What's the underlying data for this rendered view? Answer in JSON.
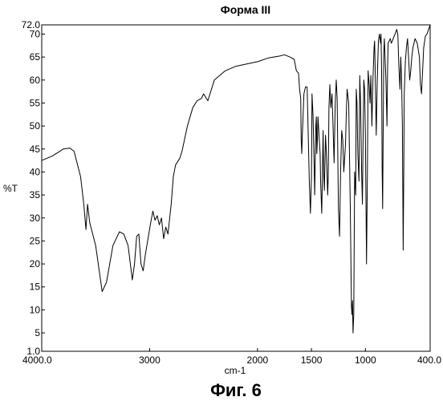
{
  "chart_data": {
    "type": "line",
    "title": "Форма III",
    "xlabel": "cm-1",
    "ylabel": "%T",
    "caption": "Фиг. 6",
    "xlim": [
      4000.0,
      400.0
    ],
    "ylim": [
      1.0,
      72.0
    ],
    "x_reversed": true,
    "x_ticks": [
      {
        "value": 4000,
        "label": "4000.0"
      },
      {
        "value": 3000,
        "label": "3000"
      },
      {
        "value": 2000,
        "label": "2000"
      },
      {
        "value": 1500,
        "label": "1500"
      },
      {
        "value": 1000,
        "label": "1000"
      },
      {
        "value": 400,
        "label": "400.0"
      }
    ],
    "y_ticks": [
      {
        "value": 72.0,
        "label": "72.0"
      },
      {
        "value": 70,
        "label": "70"
      },
      {
        "value": 65,
        "label": "65"
      },
      {
        "value": 60,
        "label": "60"
      },
      {
        "value": 55,
        "label": "55"
      },
      {
        "value": 50,
        "label": "50"
      },
      {
        "value": 45,
        "label": "45"
      },
      {
        "value": 40,
        "label": "40"
      },
      {
        "value": 35,
        "label": "35"
      },
      {
        "value": 30,
        "label": "30"
      },
      {
        "value": 25,
        "label": "25"
      },
      {
        "value": 20,
        "label": "20"
      },
      {
        "value": 15,
        "label": "15"
      },
      {
        "value": 10,
        "label": "10"
      },
      {
        "value": 5,
        "label": "5"
      },
      {
        "value": 1.0,
        "label": "1.0"
      }
    ],
    "grid": false,
    "series": [
      {
        "color": "#000000",
        "points": [
          [
            4000,
            42.5
          ],
          [
            3900,
            43.5
          ],
          [
            3800,
            45
          ],
          [
            3740,
            45.2
          ],
          [
            3700,
            44.5
          ],
          [
            3640,
            39
          ],
          [
            3610,
            33
          ],
          [
            3590,
            27.5
          ],
          [
            3575,
            33
          ],
          [
            3555,
            29
          ],
          [
            3500,
            24
          ],
          [
            3440,
            14
          ],
          [
            3400,
            16
          ],
          [
            3340,
            24
          ],
          [
            3280,
            27
          ],
          [
            3240,
            26.5
          ],
          [
            3200,
            24
          ],
          [
            3160,
            16.5
          ],
          [
            3140,
            20
          ],
          [
            3120,
            26
          ],
          [
            3100,
            26.5
          ],
          [
            3080,
            20
          ],
          [
            3060,
            18.5
          ],
          [
            3040,
            22
          ],
          [
            2990,
            29
          ],
          [
            2970,
            31.5
          ],
          [
            2950,
            29.5
          ],
          [
            2930,
            30.5
          ],
          [
            2910,
            28.5
          ],
          [
            2890,
            30
          ],
          [
            2870,
            25.5
          ],
          [
            2850,
            28
          ],
          [
            2830,
            26.5
          ],
          [
            2800,
            33
          ],
          [
            2780,
            39
          ],
          [
            2760,
            41.5
          ],
          [
            2720,
            43
          ],
          [
            2700,
            44.5
          ],
          [
            2650,
            50
          ],
          [
            2600,
            54
          ],
          [
            2560,
            55.5
          ],
          [
            2520,
            56
          ],
          [
            2500,
            57
          ],
          [
            2460,
            55.5
          ],
          [
            2400,
            60
          ],
          [
            2300,
            62
          ],
          [
            2200,
            63
          ],
          [
            2100,
            63.5
          ],
          [
            2000,
            64
          ],
          [
            1900,
            64.8
          ],
          [
            1800,
            65.2
          ],
          [
            1750,
            65.5
          ],
          [
            1700,
            65
          ],
          [
            1660,
            64.5
          ],
          [
            1640,
            62
          ],
          [
            1620,
            61.5
          ],
          [
            1610,
            58
          ],
          [
            1600,
            56
          ],
          [
            1595,
            47
          ],
          [
            1590,
            44
          ],
          [
            1585,
            48
          ],
          [
            1570,
            57
          ],
          [
            1555,
            58.5
          ],
          [
            1540,
            58.5
          ],
          [
            1520,
            38
          ],
          [
            1510,
            31
          ],
          [
            1500,
            39
          ],
          [
            1495,
            57
          ],
          [
            1485,
            52
          ],
          [
            1475,
            41
          ],
          [
            1470,
            35
          ],
          [
            1460,
            50
          ],
          [
            1455,
            52
          ],
          [
            1450,
            44
          ],
          [
            1445,
            47
          ],
          [
            1440,
            52
          ],
          [
            1430,
            48
          ],
          [
            1420,
            44
          ],
          [
            1415,
            38
          ],
          [
            1405,
            31
          ],
          [
            1400,
            38
          ],
          [
            1392,
            49
          ],
          [
            1387,
            40
          ],
          [
            1380,
            36
          ],
          [
            1370,
            48
          ],
          [
            1362,
            44
          ],
          [
            1355,
            39
          ],
          [
            1350,
            35
          ],
          [
            1345,
            39
          ],
          [
            1338,
            54
          ],
          [
            1330,
            59
          ],
          [
            1320,
            54
          ],
          [
            1310,
            57
          ],
          [
            1300,
            50
          ],
          [
            1290,
            42
          ],
          [
            1280,
            55
          ],
          [
            1270,
            60
          ],
          [
            1262,
            56
          ],
          [
            1250,
            32
          ],
          [
            1240,
            26
          ],
          [
            1230,
            40
          ],
          [
            1220,
            49
          ],
          [
            1210,
            47
          ],
          [
            1200,
            40
          ],
          [
            1185,
            46
          ],
          [
            1178,
            52
          ],
          [
            1170,
            58
          ],
          [
            1155,
            55
          ],
          [
            1140,
            32
          ],
          [
            1130,
            11
          ],
          [
            1125,
            9
          ],
          [
            1120,
            12
          ],
          [
            1115,
            5
          ],
          [
            1108,
            9
          ],
          [
            1100,
            40
          ],
          [
            1090,
            35
          ],
          [
            1085,
            58
          ],
          [
            1078,
            55
          ],
          [
            1070,
            44
          ],
          [
            1060,
            38
          ],
          [
            1052,
            61
          ],
          [
            1045,
            55
          ],
          [
            1035,
            40
          ],
          [
            1028,
            33
          ],
          [
            1020,
            50
          ],
          [
            1015,
            60
          ],
          [
            1008,
            58
          ],
          [
            1000,
            48
          ],
          [
            990,
            20
          ],
          [
            982,
            40
          ],
          [
            975,
            62
          ],
          [
            965,
            59
          ],
          [
            958,
            55
          ],
          [
            950,
            61
          ],
          [
            940,
            50
          ],
          [
            930,
            60
          ],
          [
            920,
            67
          ],
          [
            915,
            68.5
          ],
          [
            910,
            63
          ],
          [
            900,
            48
          ],
          [
            890,
            60
          ],
          [
            880,
            68.5
          ],
          [
            870,
            70
          ],
          [
            860,
            68
          ],
          [
            855,
            70
          ],
          [
            850,
            62
          ],
          [
            845,
            40
          ],
          [
            840,
            32
          ],
          [
            835,
            50
          ],
          [
            830,
            66
          ],
          [
            825,
            69
          ],
          [
            810,
            60
          ],
          [
            800,
            50
          ],
          [
            795,
            62
          ],
          [
            790,
            68
          ],
          [
            770,
            69
          ],
          [
            760,
            68
          ],
          [
            750,
            68.5
          ],
          [
            735,
            69.5
          ],
          [
            725,
            70
          ],
          [
            710,
            71
          ],
          [
            700,
            70
          ],
          [
            690,
            63
          ],
          [
            680,
            58
          ],
          [
            672,
            65
          ],
          [
            665,
            60
          ],
          [
            657,
            50
          ],
          [
            650,
            23
          ],
          [
            645,
            40
          ],
          [
            640,
            57
          ],
          [
            630,
            64
          ],
          [
            620,
            67
          ],
          [
            610,
            69
          ],
          [
            600,
            65
          ],
          [
            590,
            60
          ],
          [
            580,
            62
          ],
          [
            570,
            65
          ],
          [
            560,
            67
          ],
          [
            550,
            68
          ],
          [
            540,
            69
          ],
          [
            520,
            68
          ],
          [
            500,
            65
          ],
          [
            490,
            59
          ],
          [
            480,
            57
          ],
          [
            470,
            62
          ],
          [
            460,
            67
          ],
          [
            445,
            69.5
          ],
          [
            430,
            70
          ],
          [
            415,
            71
          ],
          [
            400,
            72
          ]
        ]
      }
    ]
  }
}
